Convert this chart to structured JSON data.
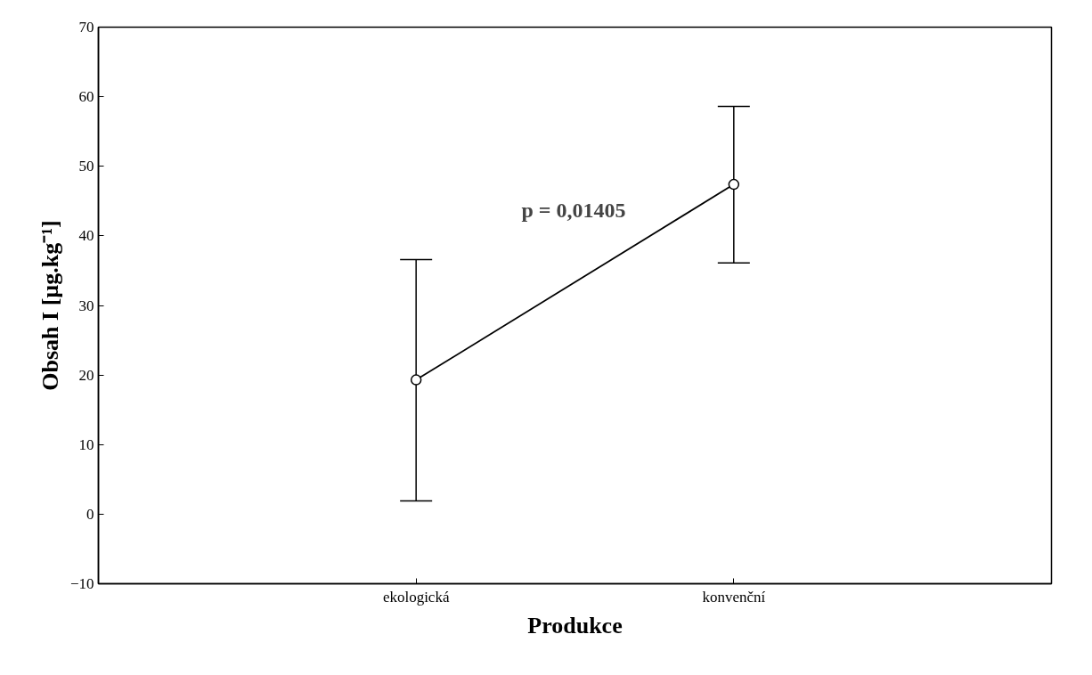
{
  "chart_data": {
    "type": "line",
    "xlabel": "Produkce",
    "ylabel": "Obsah I [µg.kg⁻¹]",
    "categories": [
      "ekologická",
      "konvenční"
    ],
    "series": [
      {
        "color": "#000000",
        "values": [
          19.3,
          47.4
        ],
        "errors": [
          [
            1.9,
            36.6
          ],
          [
            36.1,
            58.6
          ]
        ]
      }
    ],
    "ylim": [
      -10,
      70
    ],
    "yticks": [
      -10,
      0,
      10,
      20,
      30,
      40,
      50,
      60,
      70
    ],
    "annotations": [
      "p = 0,01405"
    ],
    "marker": "circle",
    "line_style": "solid",
    "grid": false
  }
}
